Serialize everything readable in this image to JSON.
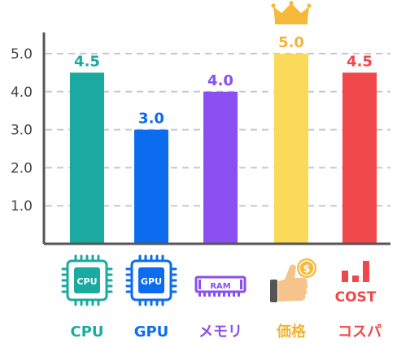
{
  "chart_data": {
    "type": "bar",
    "categories": [
      "CPU",
      "GPU",
      "メモリ",
      "価格",
      "コスパ"
    ],
    "values": [
      4.5,
      3.0,
      4.0,
      5.0,
      4.5
    ],
    "value_labels": [
      "4.5",
      "3.0",
      "4.0",
      "5.0",
      "4.5"
    ],
    "colors": [
      "#1aaaa0",
      "#0b6cf0",
      "#8a4ff0",
      "#fbd95a",
      "#f0484a"
    ],
    "label_colors": [
      "#1aaaa0",
      "#0b6cf0",
      "#8a4ff0",
      "#f0b43a",
      "#f0484a"
    ],
    "yticks": [
      "1.0",
      "2.0",
      "3.0",
      "4.0",
      "5.0"
    ],
    "ytick_values": [
      1,
      2,
      3,
      4,
      5
    ],
    "ylim": [
      0,
      5.5
    ],
    "grid": true,
    "icons": [
      "cpu-chip-icon",
      "gpu-chip-icon",
      "ram-module-icon",
      "thumbs-up-coin-icon",
      "cost-bars-icon"
    ],
    "icon_texts": {
      "cpu": "CPU",
      "gpu": "GPU",
      "ram": "RAM",
      "cost": "COST",
      "coin": "$"
    },
    "crown_icon": "crown-icon"
  }
}
